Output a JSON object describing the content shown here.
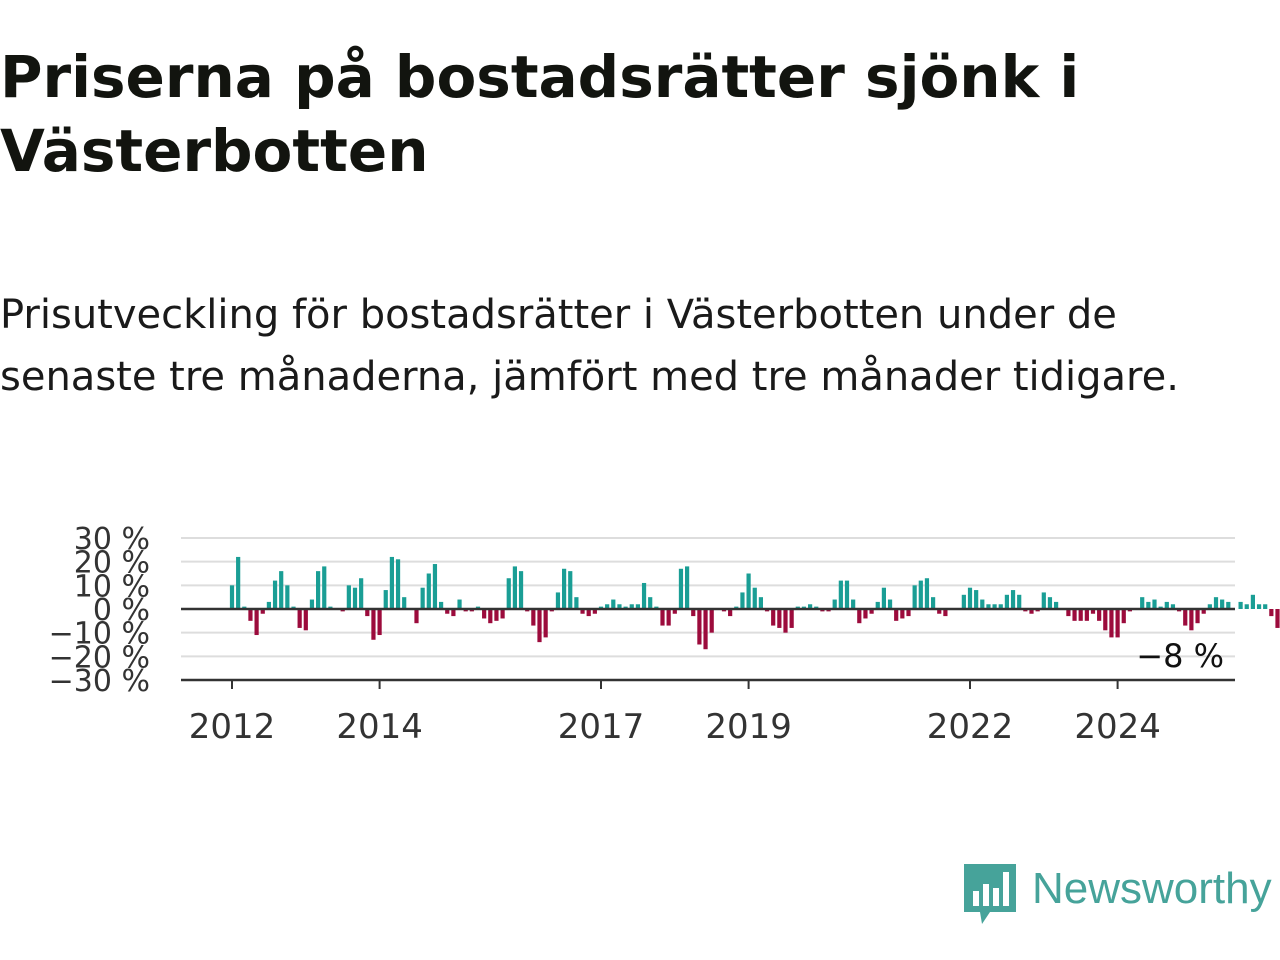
{
  "title": "Priserna på bostadsrätter sjönk i Västerbotten",
  "subtitle": "Prisutveckling för bostadsrätter i Västerbotten under de senaste tre månaderna, jämfört med tre månader tidigare.",
  "logo": {
    "text": "Newsworthy",
    "icon": "newsworthy-bar-chart-icon"
  },
  "colors": {
    "positive": "#1a9e95",
    "negative": "#9c0b3c",
    "grid": "#dddddd",
    "axis": "#333333",
    "brand": "#46a39a"
  },
  "chart_data": {
    "type": "bar",
    "title": "Priserna på bostadsrätter sjönk i Västerbotten",
    "subtitle": "Prisutveckling för bostadsrätter i Västerbotten under de senaste tre månaderna, jämfört med tre månader tidigare.",
    "xlabel": "",
    "ylabel": "",
    "unit": "%",
    "frequency": "monthly",
    "start": "2012-01",
    "ylim": [
      -30,
      30
    ],
    "yticks": [
      -30,
      -20,
      -10,
      0,
      10,
      20,
      30
    ],
    "ytick_labels": [
      "−30 %",
      "−20 %",
      "−10 %",
      "0 %",
      "10 %",
      "20 %",
      "30 %"
    ],
    "xticks": [
      2012,
      2014,
      2017,
      2019,
      2022,
      2024
    ],
    "grid": true,
    "legend": "none",
    "last_value_label": "−8 %",
    "values": [
      10,
      22,
      1,
      -5,
      -11,
      -2,
      3,
      12,
      16,
      10,
      1,
      -8,
      -9,
      4,
      16,
      18,
      1,
      0,
      -1,
      10,
      9,
      13,
      -3,
      -13,
      -11,
      8,
      22,
      21,
      5,
      0,
      -6,
      9,
      15,
      19,
      3,
      -2,
      -3,
      4,
      -1,
      -1,
      1,
      -4,
      -6,
      -5,
      -4,
      13,
      18,
      16,
      -1,
      -7,
      -14,
      -12,
      -1,
      7,
      17,
      16,
      5,
      -2,
      -3,
      -2,
      1,
      2,
      4,
      2,
      1,
      2,
      2,
      11,
      5,
      1,
      -7,
      -7,
      -2,
      17,
      18,
      -3,
      -15,
      -17,
      -10,
      0,
      -1,
      -3,
      1,
      7,
      15,
      9,
      5,
      -1,
      -7,
      -8,
      -10,
      -8,
      1,
      1,
      2,
      1,
      -1,
      -1,
      4,
      12,
      12,
      4,
      -6,
      -4,
      -2,
      3,
      9,
      4,
      -5,
      -4,
      -3,
      10,
      12,
      13,
      5,
      -2,
      -3,
      0,
      0,
      6,
      9,
      8,
      4,
      2,
      2,
      2,
      6,
      8,
      6,
      -1,
      -2,
      -1,
      7,
      5,
      3,
      0,
      -3,
      -5,
      -5,
      -5,
      -2,
      -5,
      -9,
      -12,
      -12,
      -6,
      -1,
      0,
      5,
      3,
      4,
      1,
      3,
      2,
      -1,
      -7,
      -9,
      -6,
      -2,
      2,
      5,
      4,
      3,
      0,
      3,
      2,
      6,
      2,
      2,
      -3,
      -8
    ]
  }
}
